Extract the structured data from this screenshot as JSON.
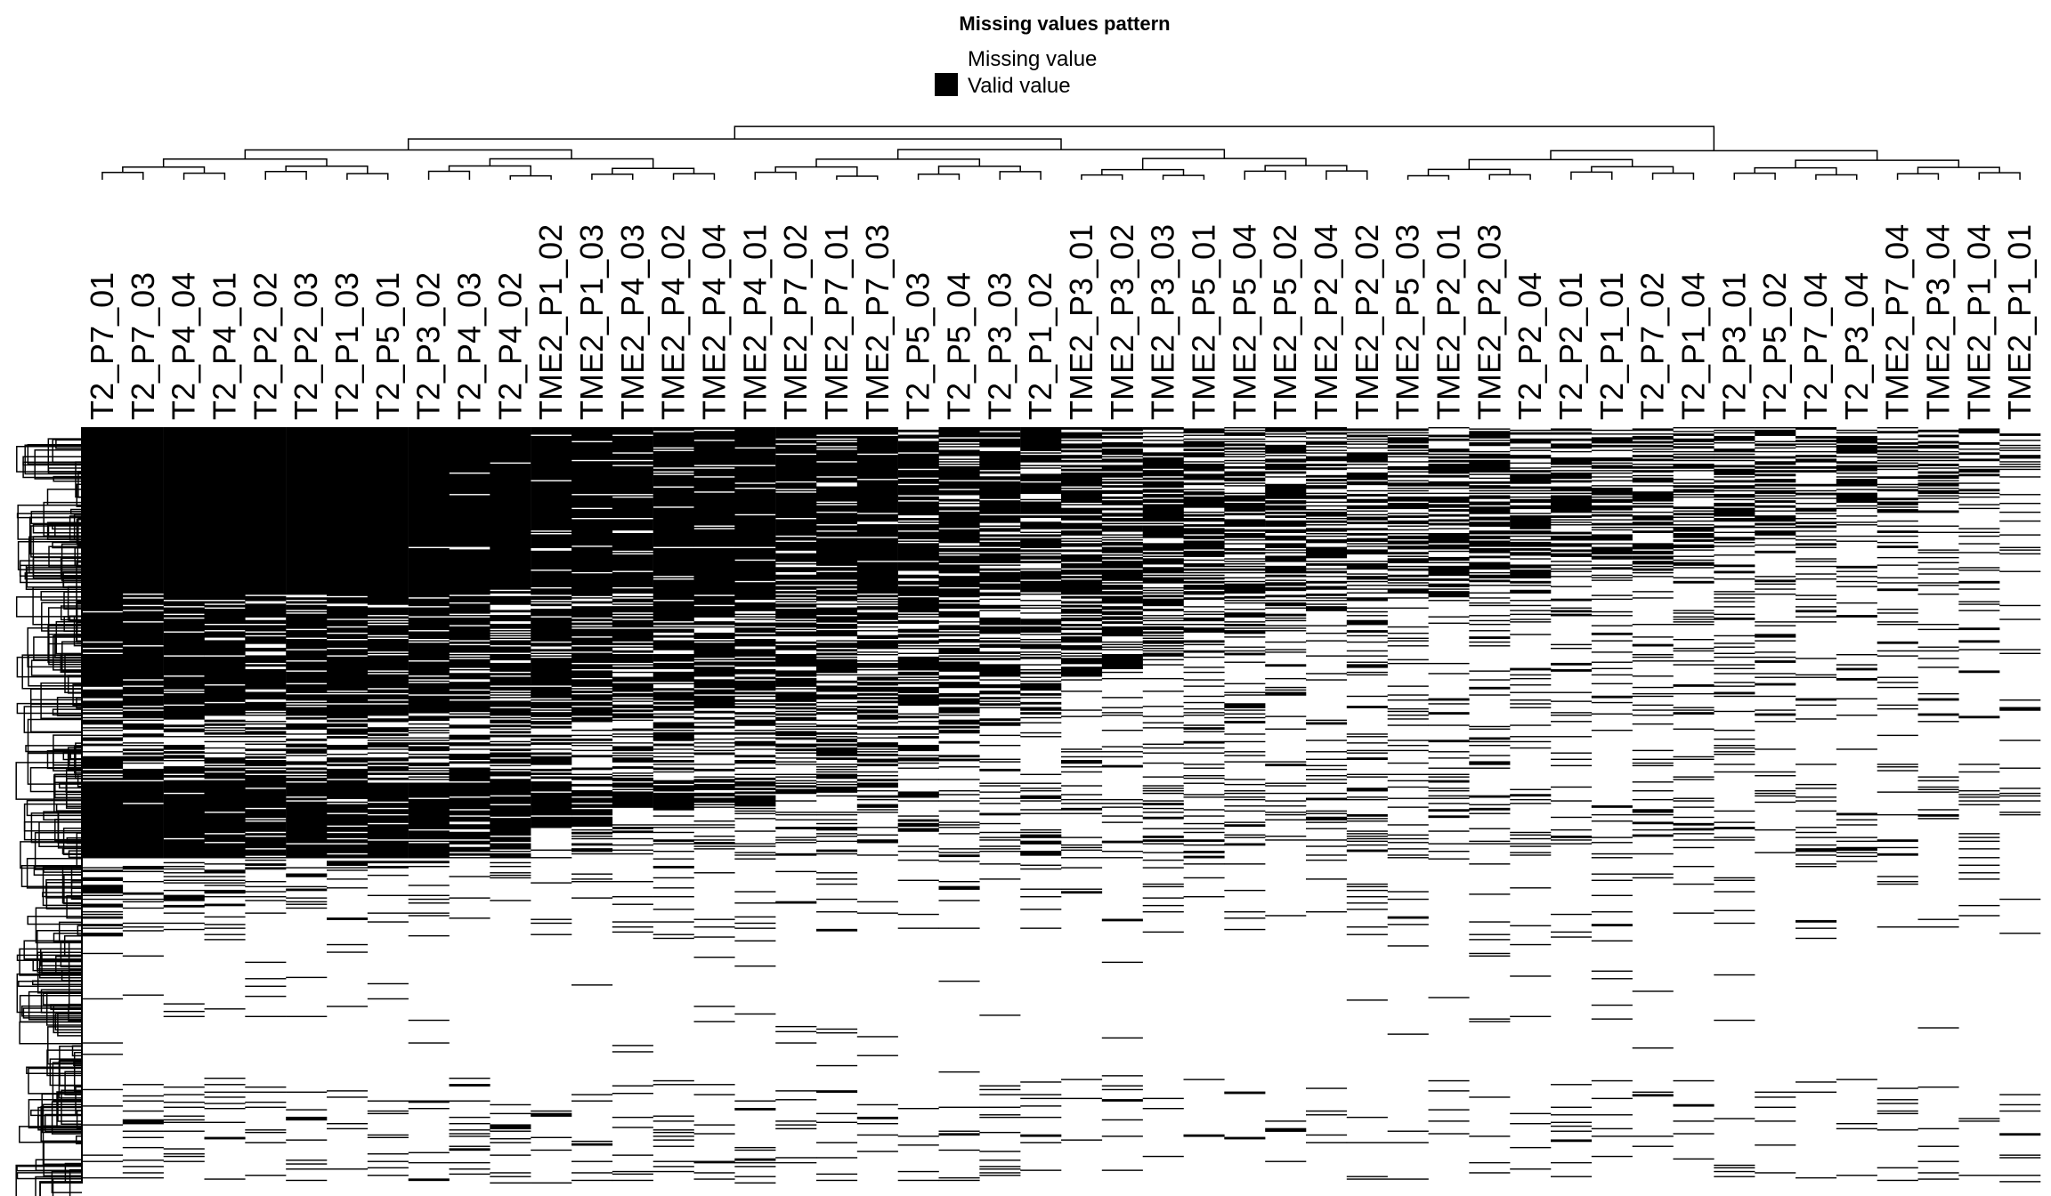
{
  "chart_data": {
    "type": "heatmap",
    "title": "Missing values pattern",
    "legend": [
      {
        "label": "Missing value",
        "color": "#ffffff"
      },
      {
        "label": "Valid value",
        "color": "#000000"
      }
    ],
    "legend_position": "top-center",
    "column_dendrogram": true,
    "row_dendrogram": true,
    "colors": {
      "valid": "#000000",
      "missing": "#ffffff"
    },
    "columns": [
      "T2_P7_01",
      "T2_P7_03",
      "T2_P4_04",
      "T2_P4_01",
      "T2_P2_02",
      "T2_P2_03",
      "T2_P1_03",
      "T2_P5_01",
      "T2_P3_02",
      "T2_P4_03",
      "T2_P4_02",
      "TME2_P1_02",
      "TME2_P1_03",
      "TME2_P4_03",
      "TME2_P4_02",
      "TME2_P4_04",
      "TME2_P4_01",
      "TME2_P7_02",
      "TME2_P7_01",
      "TME2_P7_03",
      "T2_P5_03",
      "T2_P5_04",
      "T2_P3_03",
      "T2_P1_02",
      "TME2_P3_01",
      "TME2_P3_02",
      "TME2_P3_03",
      "TME2_P5_01",
      "TME2_P5_04",
      "TME2_P5_02",
      "TME2_P2_04",
      "TME2_P2_02",
      "TME2_P5_03",
      "TME2_P2_01",
      "TME2_P2_03",
      "T2_P2_04",
      "T2_P2_01",
      "T2_P1_01",
      "T2_P7_02",
      "T2_P1_04",
      "T2_P3_01",
      "T2_P5_02",
      "T2_P7_04",
      "T2_P3_04",
      "TME2_P7_04",
      "TME2_P3_04",
      "TME2_P1_04",
      "TME2_P1_01"
    ],
    "column_valid_fraction": [
      0.66,
      0.62,
      0.61,
      0.6,
      0.58,
      0.58,
      0.56,
      0.54,
      0.54,
      0.52,
      0.52,
      0.48,
      0.48,
      0.46,
      0.46,
      0.45,
      0.45,
      0.44,
      0.44,
      0.43,
      0.4,
      0.38,
      0.36,
      0.36,
      0.3,
      0.29,
      0.28,
      0.26,
      0.25,
      0.24,
      0.22,
      0.21,
      0.2,
      0.2,
      0.19,
      0.19,
      0.18,
      0.17,
      0.17,
      0.15,
      0.14,
      0.13,
      0.12,
      0.11,
      0.1,
      0.09,
      0.08,
      0.05
    ],
    "row_count": 600
  }
}
